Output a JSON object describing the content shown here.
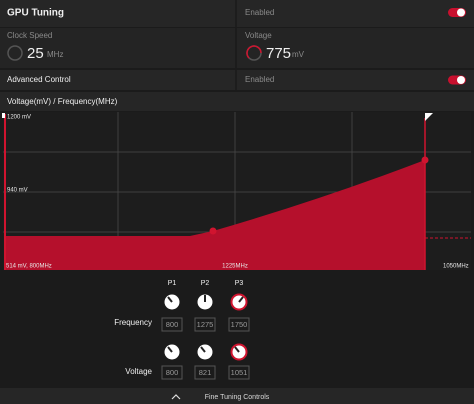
{
  "gpu_tuning": {
    "title": "GPU Tuning",
    "status": "Enabled"
  },
  "clock_speed": {
    "label": "Clock Speed",
    "value": 25,
    "unit": "MHz"
  },
  "voltage": {
    "label": "Voltage",
    "value": 775,
    "unit": "mV"
  },
  "advanced_control": {
    "title": "Advanced Control",
    "status": "Enabled"
  },
  "curve": {
    "title": "Voltage(mV) / Frequency(MHz)",
    "top_label": "1200 mV",
    "mid_label": "940 mV",
    "start_label": "514 mV, 800MHz",
    "mid_freq_label": "1225MHz",
    "end_label": "1050MHz"
  },
  "states": {
    "columns": [
      "P1",
      "P2",
      "P3"
    ],
    "rows": [
      {
        "label": "Frequency",
        "values": [
          800,
          1275,
          1750
        ]
      },
      {
        "label": "Voltage",
        "values": [
          800,
          821,
          1051
        ]
      }
    ]
  },
  "footer": "Fine Tuning Controls"
}
